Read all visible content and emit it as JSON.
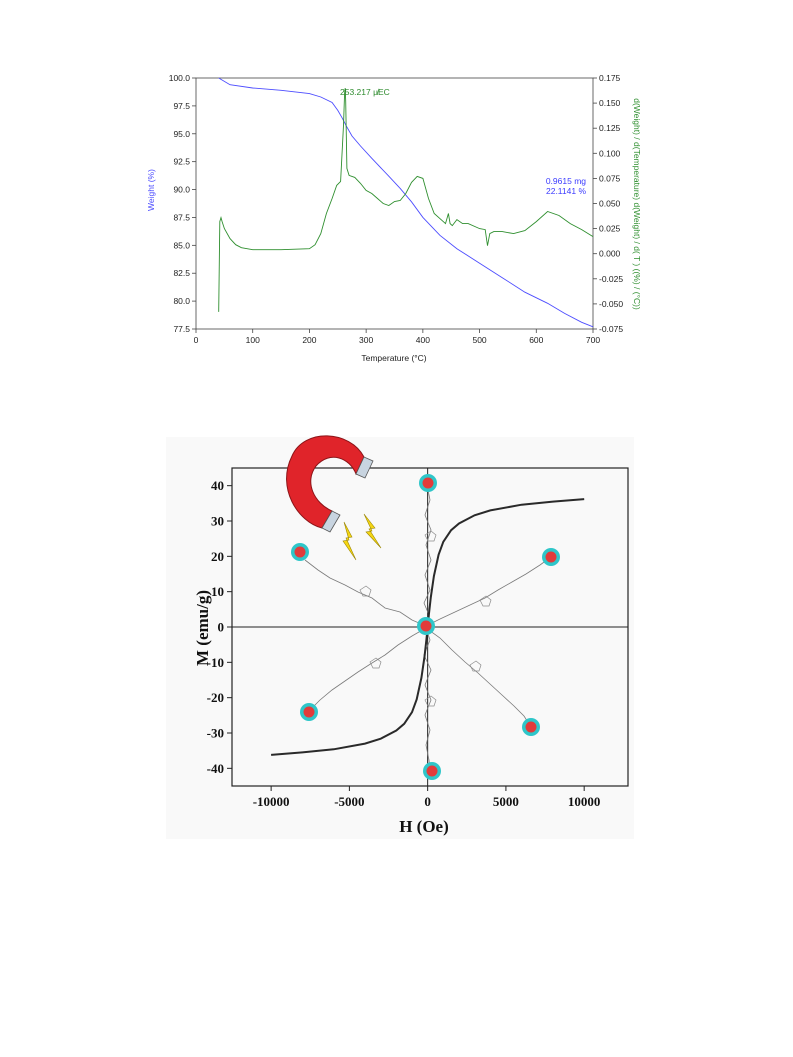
{
  "chart_data": [
    {
      "type": "line",
      "xlabel": "Temperature  (°C)",
      "ylabel": "Weight  (%)",
      "y2label": "d(Weight) / d(Temperature) d(Weight) / d( T )  ((%) / (°C))",
      "xlim": [
        0,
        700
      ],
      "ylim": [
        77.5,
        100.0
      ],
      "y2lim": [
        -0.075,
        0.175
      ],
      "x_ticks": [
        "0",
        "100",
        "200",
        "300",
        "400",
        "500",
        "600",
        "700"
      ],
      "y_ticks": [
        "77.5",
        "80.0",
        "82.5",
        "85.0",
        "87.5",
        "90.0",
        "92.5",
        "95.0",
        "97.5",
        "100.0"
      ],
      "y2_ticks": [
        "-0.075",
        "-0.050",
        "-0.025",
        "0.000",
        "0.025",
        "0.050",
        "0.075",
        "0.100",
        "0.125",
        "0.150",
        "0.175"
      ],
      "annotations": [
        {
          "text": "253.217 µ̸EC",
          "color": "#2e8b2e"
        },
        {
          "text": "0.9615 mg",
          "color": "#3a3aff"
        },
        {
          "text": "22.1141 %",
          "color": "#3a3aff"
        }
      ],
      "colors": {
        "weight": "#4d4dff",
        "derivative": "#2f8f2f"
      },
      "series": [
        {
          "axis": "left",
          "x": [
            40,
            60,
            100,
            150,
            200,
            220,
            240,
            250,
            258,
            265,
            275,
            290,
            310,
            340,
            360,
            380,
            400,
            430,
            460,
            500,
            540,
            580,
            620,
            650,
            680,
            700
          ],
          "values": [
            100.0,
            99.4,
            99.1,
            98.9,
            98.6,
            98.3,
            97.8,
            97.1,
            96.4,
            95.7,
            94.8,
            93.9,
            92.8,
            91.2,
            90.1,
            88.9,
            87.5,
            85.9,
            84.7,
            83.4,
            82.1,
            80.8,
            79.8,
            78.9,
            78.1,
            77.7
          ]
        },
        {
          "axis": "right",
          "x": [
            40,
            42,
            44,
            46,
            50,
            60,
            70,
            80,
            100,
            150,
            200,
            210,
            220,
            230,
            240,
            248,
            255,
            260,
            262,
            263,
            264,
            266,
            270,
            280,
            290,
            300,
            310,
            320,
            330,
            340,
            350,
            360,
            370,
            380,
            390,
            400,
            410,
            420,
            430,
            440,
            445,
            448,
            452,
            460,
            470,
            480,
            500,
            510,
            514,
            518,
            525,
            540,
            560,
            580,
            600,
            620,
            640,
            660,
            680,
            700
          ],
          "values": [
            -0.058,
            0.032,
            0.036,
            0.032,
            0.025,
            0.015,
            0.009,
            0.006,
            0.004,
            0.004,
            0.005,
            0.009,
            0.02,
            0.04,
            0.055,
            0.068,
            0.072,
            0.128,
            0.16,
            0.165,
            0.152,
            0.085,
            0.078,
            0.076,
            0.07,
            0.063,
            0.06,
            0.055,
            0.05,
            0.048,
            0.052,
            0.053,
            0.06,
            0.071,
            0.077,
            0.075,
            0.055,
            0.04,
            0.035,
            0.03,
            0.04,
            0.03,
            0.028,
            0.034,
            0.03,
            0.03,
            0.025,
            0.024,
            0.008,
            0.02,
            0.022,
            0.022,
            0.02,
            0.023,
            0.032,
            0.042,
            0.038,
            0.03,
            0.024,
            0.017
          ]
        }
      ]
    },
    {
      "type": "line",
      "xlabel": "H (Oe)",
      "ylabel": "M (emu/g)",
      "xlim": [
        -12500,
        12800
      ],
      "ylim": [
        -45,
        45
      ],
      "x_ticks": [
        "-10000",
        "-5000",
        "0",
        "5000",
        "10000"
      ],
      "y_ticks": [
        "-40",
        "-30",
        "-20",
        "-10",
        "0",
        "10",
        "20",
        "30",
        "40"
      ],
      "colors": {
        "curve": "#2a2a2a",
        "magnet": "#e0242a",
        "nanoparticle": "#2fc6c9",
        "bolt": "#f5d614"
      },
      "series": [
        {
          "x": [
            -10000,
            -8000,
            -6000,
            -4000,
            -3000,
            -2000,
            -1500,
            -1000,
            -700,
            -400,
            -200,
            -80,
            0,
            80,
            200,
            400,
            700,
            1000,
            1500,
            2000,
            3000,
            4000,
            6000,
            8000,
            10000
          ],
          "values": [
            -36.2,
            -35.5,
            -34.6,
            -33.0,
            -31.6,
            -29.3,
            -27.4,
            -24.1,
            -20.5,
            -14.4,
            -8.4,
            -3.6,
            0,
            3.6,
            8.4,
            14.4,
            20.5,
            24.1,
            27.4,
            29.3,
            31.6,
            33.0,
            34.6,
            35.5,
            36.2
          ]
        }
      ]
    }
  ]
}
